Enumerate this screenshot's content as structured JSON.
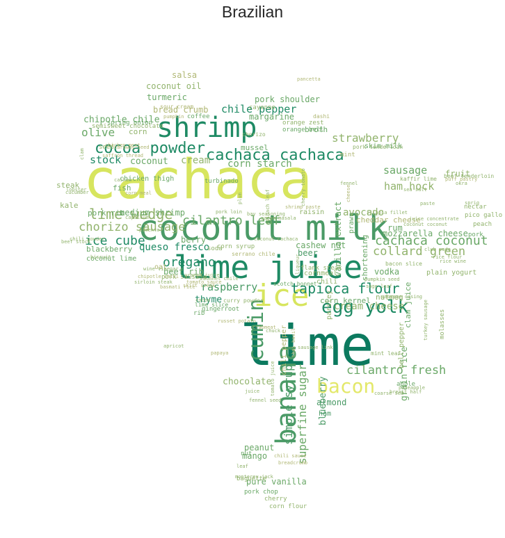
{
  "title": "Brazilian",
  "colors": {
    "c1": "#0c7a5f",
    "c2": "#1e8a64",
    "c3": "#4a9a66",
    "c4": "#6aa867",
    "c5": "#91b36c",
    "c6": "#b0b774",
    "c7": "#d7e55e",
    "c8": "#e3e86a"
  },
  "words": [
    {
      "text": "cachaca",
      "color": "c7"
    },
    {
      "text": "coconut milk",
      "color": "c3"
    },
    {
      "text": "lime",
      "color": "c1"
    },
    {
      "text": "lime juice",
      "color": "c2"
    },
    {
      "text": "shrimp",
      "color": "c2"
    },
    {
      "text": "banana",
      "color": "c3"
    },
    {
      "text": "ice",
      "color": "c7"
    },
    {
      "text": "cumin",
      "color": "c3"
    },
    {
      "text": "bacon",
      "color": "c8"
    },
    {
      "text": "egg yolk",
      "color": "c2"
    },
    {
      "text": "cocoa powder",
      "color": "c2"
    },
    {
      "text": "cachaca cachaca",
      "color": "c2"
    },
    {
      "text": "tapioca flour",
      "color": "c2"
    },
    {
      "text": "lime wedge",
      "color": "c5"
    },
    {
      "text": "cachaca coconut",
      "color": "c4"
    },
    {
      "text": "cilantro leaf",
      "color": "c4"
    },
    {
      "text": "oregano",
      "color": "c2"
    },
    {
      "text": "chorizo sausage",
      "color": "c5"
    },
    {
      "text": "collard green",
      "color": "c5"
    },
    {
      "text": "ice cube",
      "color": "c2"
    },
    {
      "text": "cilantro fresh",
      "color": "c4"
    },
    {
      "text": "strawberry",
      "color": "c5"
    },
    {
      "text": "chile pepper",
      "color": "c2"
    },
    {
      "text": "olive",
      "color": "c4"
    },
    {
      "text": "ham hock",
      "color": "c5"
    },
    {
      "text": "simple syrup",
      "color": "c3"
    },
    {
      "text": "superfine sugar",
      "color": "c4"
    },
    {
      "text": "sausage",
      "color": "c4"
    },
    {
      "text": "raspberry",
      "color": "c3"
    },
    {
      "text": "cream cheese",
      "color": "c5"
    },
    {
      "text": "avocado",
      "color": "c5"
    },
    {
      "text": "corn starch",
      "color": "c4"
    },
    {
      "text": "queso fresco",
      "color": "c2"
    },
    {
      "text": "chocolate",
      "color": "c5"
    },
    {
      "text": "blueberry",
      "color": "c3"
    },
    {
      "text": "grain rice",
      "color": "c4"
    },
    {
      "text": "chipotle chile",
      "color": "c4"
    },
    {
      "text": "cream",
      "color": "c5"
    },
    {
      "text": "stock",
      "color": "c2"
    },
    {
      "text": "coconut",
      "color": "c4"
    },
    {
      "text": "thyme",
      "color": "c2"
    },
    {
      "text": "beef rib",
      "color": "c4"
    },
    {
      "text": "medium shrimp",
      "color": "c4"
    },
    {
      "text": "mozzarella cheese",
      "color": "c4"
    },
    {
      "text": "cheddar cheese",
      "color": "c6"
    },
    {
      "text": "vanilla extract",
      "color": "c4"
    },
    {
      "text": "mango",
      "color": "c4"
    },
    {
      "text": "peanut",
      "color": "c4"
    },
    {
      "text": "pure vanilla",
      "color": "c4"
    },
    {
      "text": "beer",
      "color": "c3"
    },
    {
      "text": "vodka",
      "color": "c4"
    },
    {
      "text": "rum",
      "color": "c4"
    },
    {
      "text": "almond",
      "color": "c3"
    },
    {
      "text": "cashew nut",
      "color": "c4"
    },
    {
      "text": "bread crumb",
      "color": "c6"
    },
    {
      "text": "turmeric",
      "color": "c4"
    },
    {
      "text": "salsa",
      "color": "c6"
    },
    {
      "text": "coconut oil",
      "color": "c5"
    },
    {
      "text": "pork shoulder",
      "color": "c4"
    },
    {
      "text": "margarine",
      "color": "c4"
    },
    {
      "text": "corn",
      "color": "c5"
    },
    {
      "text": "mussel",
      "color": "c4"
    },
    {
      "text": "broth",
      "color": "c4"
    },
    {
      "text": "fruit",
      "color": "c5"
    },
    {
      "text": "berry",
      "color": "c4"
    },
    {
      "text": "fish",
      "color": "c4"
    },
    {
      "text": "steak",
      "color": "c5"
    },
    {
      "text": "kale",
      "color": "c5"
    },
    {
      "text": "pork rib",
      "color": "c4"
    },
    {
      "text": "blackberry",
      "color": "c4"
    },
    {
      "text": "corn kernel",
      "color": "c4"
    },
    {
      "text": "nutmeg",
      "color": "c5"
    },
    {
      "text": "clam juice",
      "color": "c4"
    },
    {
      "text": "bell pepper",
      "color": "c5"
    },
    {
      "text": "chili pepper",
      "color": "c6"
    },
    {
      "text": "parsley",
      "color": "c5"
    },
    {
      "text": "shortening",
      "color": "c4"
    },
    {
      "text": "prawn",
      "color": "c4"
    },
    {
      "text": "raisin",
      "color": "c5"
    },
    {
      "text": "skim milk",
      "color": "c4"
    },
    {
      "text": "coconut lime",
      "color": "c4"
    },
    {
      "text": "chicken thigh",
      "color": "c4"
    },
    {
      "text": "seed",
      "color": "c5"
    },
    {
      "text": "spring onion",
      "color": "c4"
    },
    {
      "text": "semisweet chocolate",
      "color": "c5"
    },
    {
      "text": "coffee",
      "color": "c4"
    },
    {
      "text": "ham",
      "color": "c3"
    },
    {
      "text": "nut",
      "color": "c4"
    },
    {
      "text": "baguette",
      "color": "c5"
    },
    {
      "text": "pork chop",
      "color": "c4"
    },
    {
      "text": "cherry",
      "color": "c5"
    },
    {
      "text": "corn flour",
      "color": "c5"
    },
    {
      "text": "plain yogurt",
      "color": "c5"
    },
    {
      "text": "apple",
      "color": "c4"
    },
    {
      "text": "molasses",
      "color": "c5"
    },
    {
      "text": "pork",
      "color": "c4"
    },
    {
      "text": "nectar",
      "color": "c5"
    },
    {
      "text": "pico gallo",
      "color": "c5"
    },
    {
      "text": "peach",
      "color": "c5"
    },
    {
      "text": "oat",
      "color": "c6"
    },
    {
      "text": "pork sausage",
      "color": "c5"
    },
    {
      "text": "cayenne",
      "color": "c5"
    },
    {
      "text": "chili",
      "color": "c5"
    },
    {
      "text": "cornmeal",
      "color": "c5"
    },
    {
      "text": "flank steak",
      "color": "c5"
    },
    {
      "text": "gingerroot",
      "color": "c4"
    },
    {
      "text": "lime slice",
      "color": "c4"
    },
    {
      "text": "rib",
      "color": "c4"
    },
    {
      "text": "soda",
      "color": "c5"
    },
    {
      "text": "turbinado",
      "color": "c4"
    },
    {
      "text": "orange bell",
      "color": "c4"
    },
    {
      "text": "chorizo",
      "color": "c5"
    },
    {
      "text": "orange zest",
      "color": "c5"
    },
    {
      "text": "mint",
      "color": "c6"
    },
    {
      "text": "pork tenderloin",
      "color": "c5"
    },
    {
      "text": "corn syrup",
      "color": "c5"
    },
    {
      "text": "serrano chile",
      "color": "c6"
    },
    {
      "text": "dashi",
      "color": "c6"
    },
    {
      "text": "pancetta",
      "color": "c6"
    },
    {
      "text": "sour cream",
      "color": "c6"
    },
    {
      "text": "kaffir lime",
      "color": "c5"
    },
    {
      "text": "beef tenderloin",
      "color": "c5"
    },
    {
      "text": "curry powder",
      "color": "c5"
    },
    {
      "text": "bacon slice",
      "color": "c5"
    },
    {
      "text": "scotch bonnet",
      "color": "c4"
    },
    {
      "text": "mint leaf",
      "color": "c5"
    },
    {
      "text": "chicken meat",
      "color": "c6"
    },
    {
      "text": "saffron thread",
      "color": "c6"
    },
    {
      "text": "caraway seed",
      "color": "c6"
    },
    {
      "text": "pumpkin",
      "color": "c6"
    },
    {
      "text": "skirt steak",
      "color": "c6"
    },
    {
      "text": "tomato juice",
      "color": "c5"
    },
    {
      "text": "thai basil",
      "color": "c6"
    },
    {
      "text": "cashew",
      "color": "c5"
    },
    {
      "text": "clam",
      "color": "c5"
    },
    {
      "text": "lobster",
      "color": "c5"
    },
    {
      "text": "cucumber",
      "color": "c5"
    },
    {
      "text": "chili powder",
      "color": "c5"
    },
    {
      "text": "beef stock",
      "color": "c5"
    },
    {
      "text": "biscuit",
      "color": "c5"
    },
    {
      "text": "capsicum",
      "color": "c5"
    },
    {
      "text": "apricot",
      "color": "c5"
    },
    {
      "text": "papaya",
      "color": "c6"
    },
    {
      "text": "pineapple",
      "color": "c5"
    },
    {
      "text": "breast half",
      "color": "c5"
    },
    {
      "text": "coarse sea",
      "color": "c5"
    },
    {
      "text": "fennel seed",
      "color": "c5"
    },
    {
      "text": "chili sauce",
      "color": "c6"
    },
    {
      "text": "breadcrumb",
      "color": "c6"
    },
    {
      "text": "leaf",
      "color": "c5"
    },
    {
      "text": "monterey jack",
      "color": "c5"
    },
    {
      "text": "juice",
      "color": "c5"
    },
    {
      "text": "turkey sausage",
      "color": "c5"
    },
    {
      "text": "rice flour",
      "color": "c5"
    },
    {
      "text": "rice wine",
      "color": "c5"
    },
    {
      "text": "club soda",
      "color": "c5"
    },
    {
      "text": "coconut coconut",
      "color": "c5"
    },
    {
      "text": "juice concentrate",
      "color": "c5"
    },
    {
      "text": "paste",
      "color": "c5"
    },
    {
      "text": "sea salt",
      "color": "c5"
    },
    {
      "text": "okra",
      "color": "c5"
    },
    {
      "text": "puff pastry",
      "color": "c6"
    },
    {
      "text": "sprig",
      "color": "c5"
    },
    {
      "text": "sage leaf",
      "color": "c5"
    },
    {
      "text": "sausage casing",
      "color": "c5"
    },
    {
      "text": "pumpkin seed",
      "color": "c5"
    },
    {
      "text": "spinach leaf",
      "color": "c5"
    },
    {
      "text": "garam masala",
      "color": "c5"
    },
    {
      "text": "bay seasoning",
      "color": "c5"
    },
    {
      "text": "plum",
      "color": "c5"
    },
    {
      "text": "pork loin",
      "color": "c5"
    },
    {
      "text": "shrimp paste",
      "color": "c6"
    },
    {
      "text": "tilapia fillet",
      "color": "c5"
    },
    {
      "text": "cherry tomato",
      "color": "c5"
    },
    {
      "text": "wine vinegar",
      "color": "c5"
    },
    {
      "text": "chipotle chili",
      "color": "c6"
    },
    {
      "text": "sirloin steak",
      "color": "c5"
    },
    {
      "text": "basmati rice",
      "color": "c6"
    },
    {
      "text": "corn meal",
      "color": "c6"
    },
    {
      "text": "pimento",
      "color": "c5"
    },
    {
      "text": "cocoa",
      "color": "c5"
    },
    {
      "text": "sausage link",
      "color": "c5"
    },
    {
      "text": "chuck",
      "color": "c5"
    },
    {
      "text": "crabmeat",
      "color": "c6"
    },
    {
      "text": "russet potato",
      "color": "c6"
    },
    {
      "text": "tomato sauce",
      "color": "c6"
    },
    {
      "text": "orange juice",
      "color": "c5"
    },
    {
      "text": "bonnet chile",
      "color": "c5"
    },
    {
      "text": "coconut cachaca",
      "color": "c5"
    },
    {
      "text": "liqueur",
      "color": "c5"
    },
    {
      "text": "fennel",
      "color": "c5"
    },
    {
      "text": "cheese",
      "color": "c6"
    }
  ]
}
